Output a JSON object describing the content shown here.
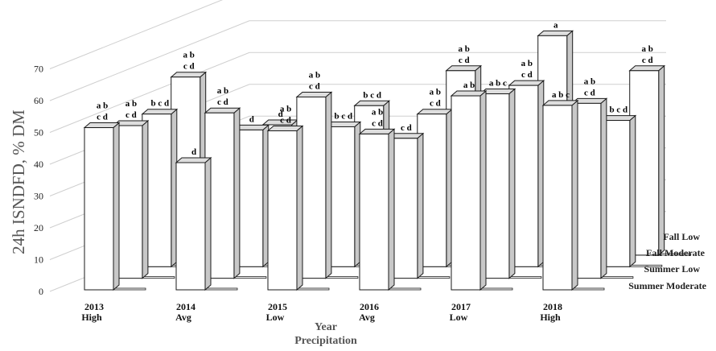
{
  "chart_data": {
    "type": "bar",
    "ylabel": "24h ISNDFD, % DM",
    "xlabel": "Year",
    "xlabel2": "Precipitation",
    "ylim": [
      0,
      70
    ],
    "yticks": [
      "0",
      "10",
      "20",
      "30",
      "40",
      "50",
      "60",
      "70"
    ],
    "grid": true,
    "legend_position": "right",
    "categories": [
      "2013",
      "2014",
      "2015",
      "2016",
      "2017",
      "2018"
    ],
    "precipitation": [
      "High",
      "Avg",
      "Low",
      "Avg",
      "Low",
      "High"
    ],
    "series": [
      {
        "name": "Summer Moderate",
        "values": [
          51,
          40,
          50,
          49,
          61,
          58
        ],
        "letters": [
          "a b|c d",
          "d",
          "a b|c d",
          "a b|c d",
          "a b",
          "a b c"
        ]
      },
      {
        "name": "Summer Low",
        "values": [
          48,
          52,
          57,
          44,
          58,
          55
        ],
        "letters": [
          "a b|c d",
          "a b|c d",
          "a b|c d",
          "c d",
          "a b c",
          "a b|c d"
        ]
      },
      {
        "name": "Fall Moderate",
        "values": [
          48,
          43,
          44,
          48,
          57,
          46
        ],
        "letters": [
          "b c d",
          "d",
          "b c d",
          "a b|c d",
          "a b|c d",
          "b c d"
        ]
      },
      {
        "name": "Fall Low",
        "values": [
          56,
          41,
          47,
          58,
          69,
          58
        ],
        "letters": [
          "a b|c d",
          "d",
          "b c d",
          "a b|c d",
          "a",
          "a b|c d"
        ]
      }
    ]
  }
}
